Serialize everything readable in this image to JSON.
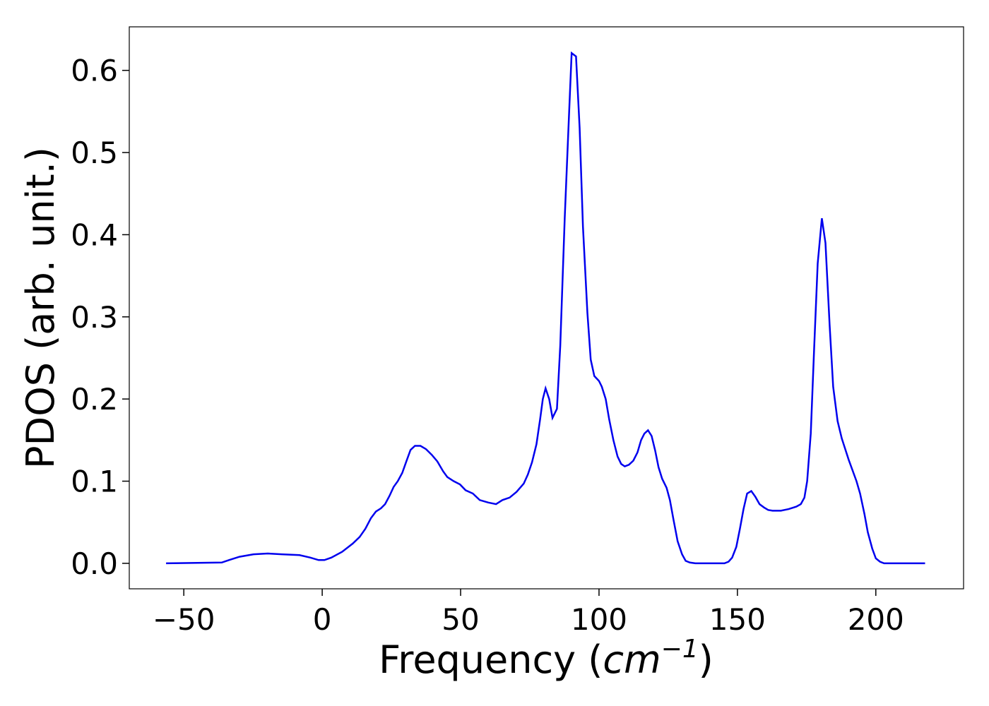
{
  "chart_data": {
    "type": "line",
    "xlabel": [
      "Frequency (",
      "cm",
      "−1",
      ")"
    ],
    "ylabel": "PDOS (arb. unit.)",
    "xlim": [
      -69.7,
      231.7
    ],
    "ylim": [
      -0.031,
      0.653
    ],
    "xticks": [
      {
        "value": -50,
        "label": "−50"
      },
      0,
      50,
      100,
      150,
      200
    ],
    "yticks": [
      {
        "value": 0,
        "label": "0.0"
      },
      0.1,
      0.2,
      0.3,
      0.4,
      0.5,
      0.6
    ],
    "series": [
      {
        "color": "#0000ee",
        "x": [
          -56.4,
          -36.3,
          -33.7,
          -29.9,
          -24.8,
          -19.7,
          -14.6,
          -8.2,
          -4.3,
          -1.3,
          0.8,
          3.3,
          7.2,
          11,
          13.5,
          15.6,
          17.6,
          19.4,
          21.2,
          22.7,
          24.3,
          25.8,
          27.3,
          28.9,
          30.4,
          31.9,
          33.5,
          35.5,
          37.5,
          39.6,
          41.6,
          43.7,
          45.2,
          47.5,
          49.8,
          51.8,
          54.4,
          56.9,
          60,
          62.8,
          65.1,
          67.7,
          70.2,
          72.8,
          74.3,
          75.8,
          77.4,
          78.7,
          79.7,
          80.7,
          82,
          83.2,
          84.8,
          86,
          87.6,
          89.1,
          90.1,
          91.7,
          93,
          94.2,
          95.8,
          97,
          98.3,
          100,
          101,
          102.4,
          103.7,
          105.2,
          106.7,
          108,
          109.3,
          110.8,
          112.4,
          113.9,
          115.2,
          116.4,
          117.7,
          119,
          120.3,
          121.5,
          122.8,
          124.4,
          125.6,
          126.9,
          128.4,
          130,
          131.3,
          132.8,
          134.8,
          145.3,
          146.8,
          148.1,
          149.6,
          150.9,
          152.2,
          153.5,
          155,
          156.5,
          158,
          159.6,
          161.1,
          162.7,
          165.7,
          168.5,
          171.3,
          172.9,
          174.2,
          175.2,
          176.5,
          177.7,
          179,
          180.5,
          181.8,
          183.3,
          184.6,
          186.2,
          187.7,
          190.2,
          193,
          194.3,
          195.9,
          197.1,
          198.7,
          200,
          201.5,
          203,
          217.8
        ],
        "values": [
          0,
          0.001,
          0.004,
          0.008,
          0.011,
          0.012,
          0.011,
          0.01,
          0.007,
          0.004,
          0.004,
          0.007,
          0.014,
          0.024,
          0.032,
          0.042,
          0.055,
          0.063,
          0.067,
          0.072,
          0.082,
          0.093,
          0.1,
          0.11,
          0.124,
          0.138,
          0.143,
          0.143,
          0.139,
          0.132,
          0.124,
          0.112,
          0.105,
          0.1,
          0.096,
          0.089,
          0.085,
          0.077,
          0.074,
          0.072,
          0.077,
          0.08,
          0.087,
          0.097,
          0.108,
          0.123,
          0.145,
          0.175,
          0.2,
          0.213,
          0.2,
          0.177,
          0.188,
          0.265,
          0.42,
          0.54,
          0.621,
          0.617,
          0.53,
          0.41,
          0.305,
          0.248,
          0.228,
          0.222,
          0.215,
          0.2,
          0.175,
          0.15,
          0.13,
          0.121,
          0.118,
          0.12,
          0.125,
          0.135,
          0.15,
          0.158,
          0.162,
          0.155,
          0.137,
          0.117,
          0.103,
          0.092,
          0.077,
          0.053,
          0.027,
          0.011,
          0.003,
          0.001,
          0,
          0,
          0.002,
          0.007,
          0.02,
          0.042,
          0.066,
          0.085,
          0.088,
          0.081,
          0.072,
          0.068,
          0.065,
          0.064,
          0.064,
          0.066,
          0.069,
          0.072,
          0.08,
          0.1,
          0.158,
          0.26,
          0.365,
          0.42,
          0.39,
          0.29,
          0.215,
          0.173,
          0.152,
          0.126,
          0.1,
          0.085,
          0.06,
          0.038,
          0.018,
          0.006,
          0.002,
          0,
          0
        ]
      }
    ]
  }
}
